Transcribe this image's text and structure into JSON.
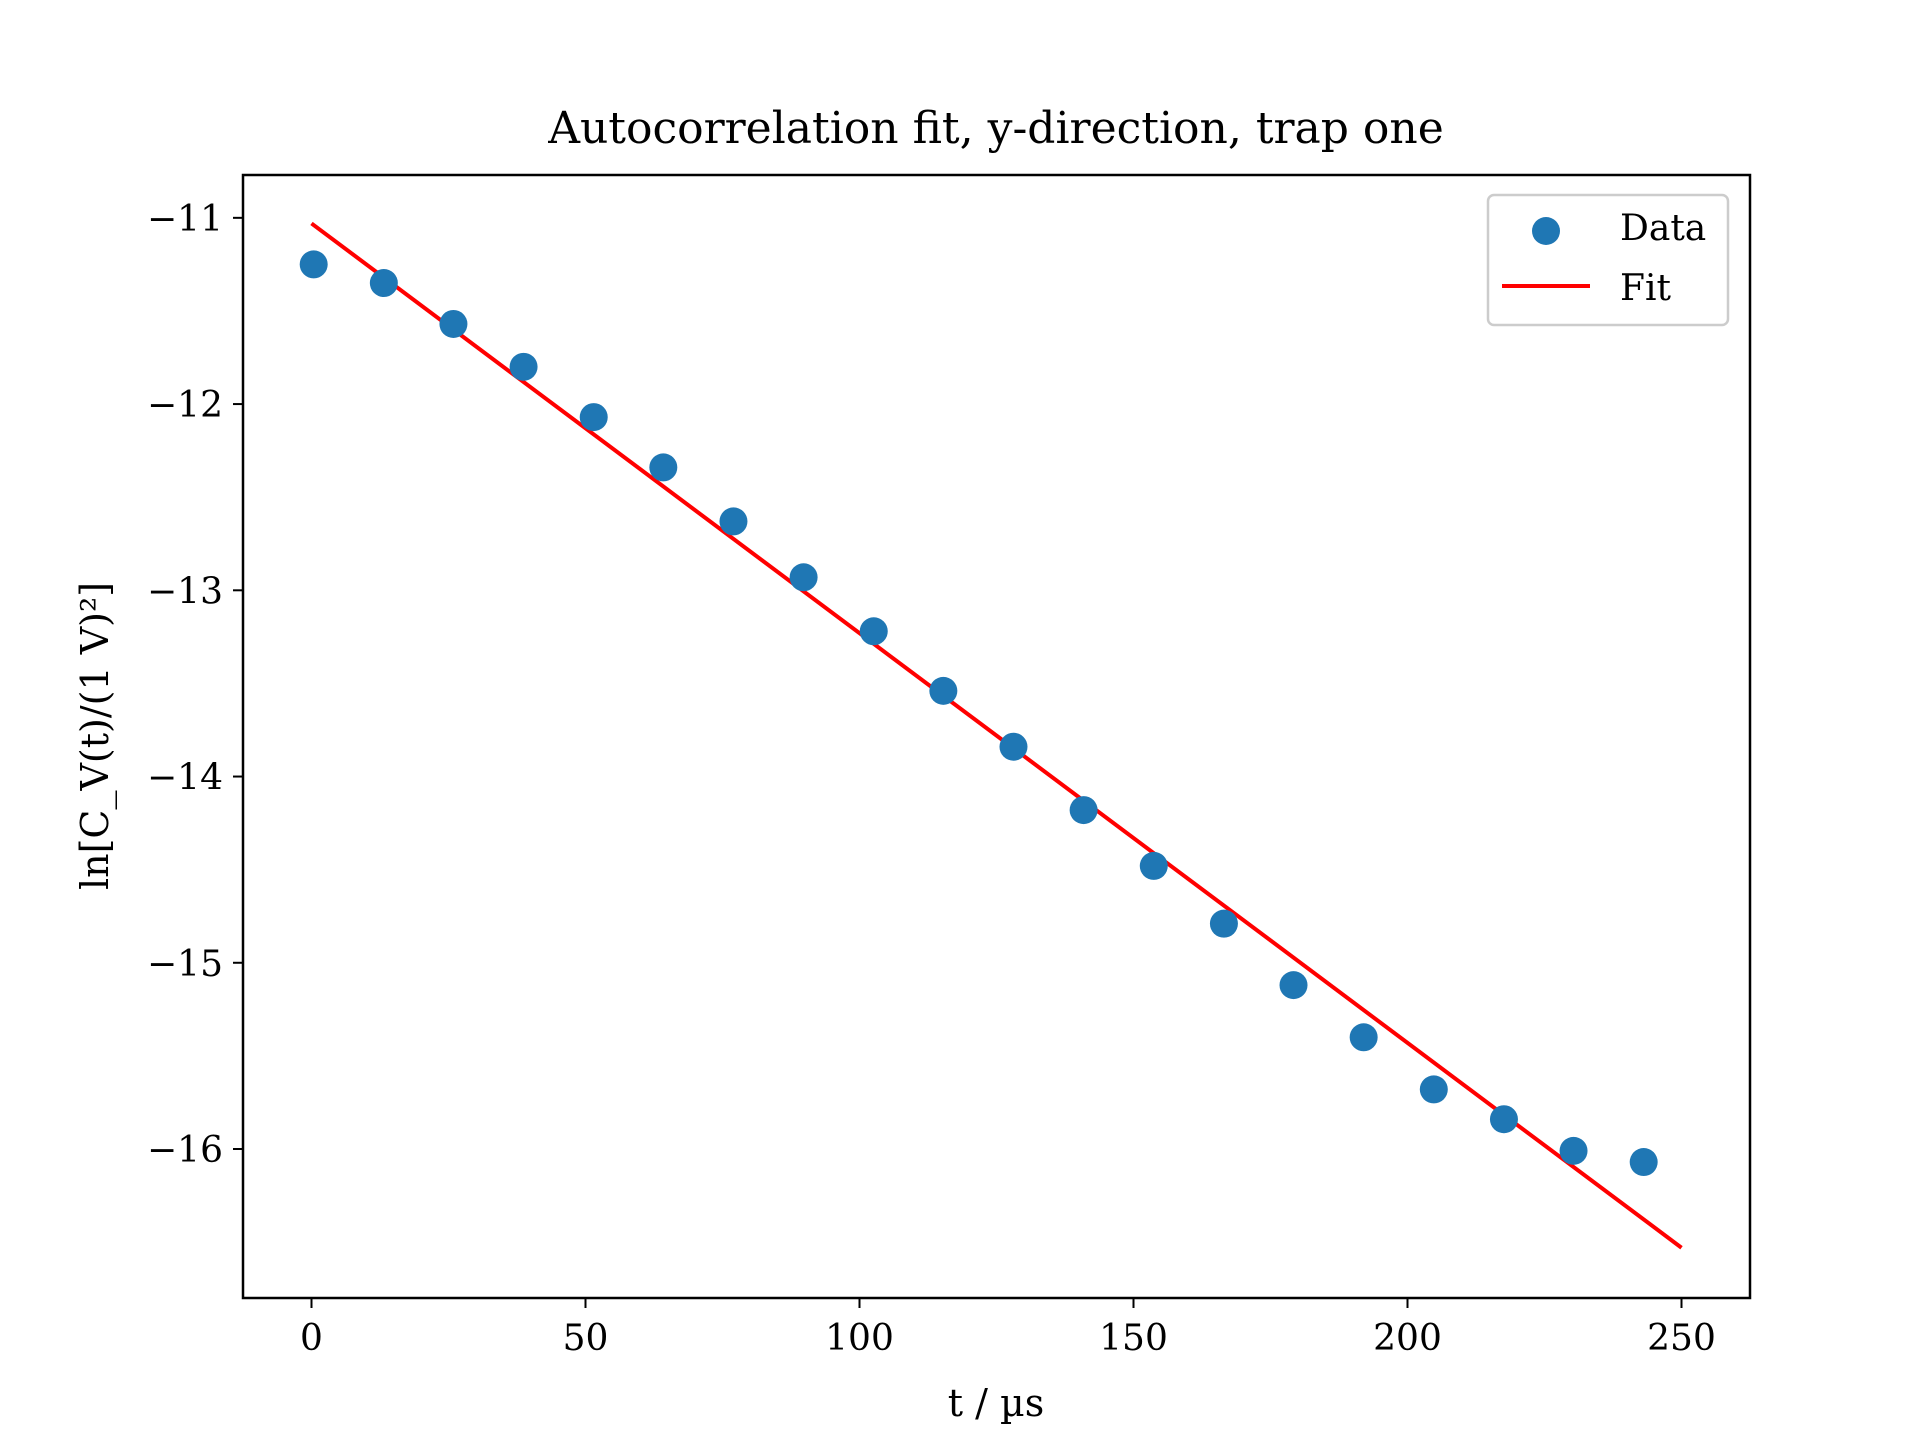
{
  "chart_data": {
    "type": "scatter",
    "title": "Autocorrelation fit, y-direction, trap one",
    "xlabel": "t / µs",
    "ylabel": "ln[C_V(t)/(1 V)²]",
    "xlim": [
      -12.5,
      262.5
    ],
    "ylim": [
      -16.8,
      -10.77
    ],
    "xticks": [
      0,
      50,
      100,
      150,
      200,
      250
    ],
    "xtick_labels": [
      "0",
      "50",
      "100",
      "150",
      "200",
      "250"
    ],
    "yticks": [
      -16,
      -15,
      -14,
      -13,
      -12,
      -11
    ],
    "ytick_labels": [
      "−16",
      "−15",
      "−14",
      "−13",
      "−12",
      "−11"
    ],
    "grid": false,
    "legend": {
      "position": "top-right",
      "entries": [
        "Data",
        "Fit"
      ]
    },
    "colors": {
      "data": "#1f77b4",
      "fit": "#ff0000"
    },
    "series": [
      {
        "name": "Data",
        "kind": "scatter",
        "x": [
          0.4,
          13.2,
          25.9,
          38.7,
          51.5,
          64.2,
          77.0,
          89.8,
          102.6,
          115.3,
          128.1,
          140.9,
          153.7,
          166.5,
          179.2,
          192.0,
          204.8,
          217.6,
          230.3,
          243.1
        ],
        "y": [
          -11.25,
          -11.35,
          -11.57,
          -11.8,
          -12.07,
          -12.34,
          -12.63,
          -12.93,
          -13.22,
          -13.54,
          -13.84,
          -14.18,
          -14.48,
          -14.79,
          -15.12,
          -15.4,
          -15.68,
          -15.84,
          -16.01,
          -16.07
        ]
      },
      {
        "name": "Fit",
        "kind": "line",
        "x": [
          0,
          250
        ],
        "y": [
          -11.03,
          -16.53
        ]
      }
    ]
  }
}
